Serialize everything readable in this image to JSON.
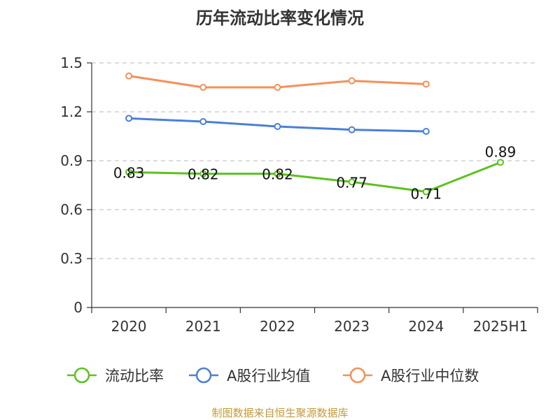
{
  "chart_data": {
    "type": "line",
    "title": "历年流动比率变化情况",
    "categories": [
      "2020",
      "2021",
      "2022",
      "2023",
      "2024",
      "2025H1"
    ],
    "ylim": [
      0,
      1.5
    ],
    "yticks": [
      "0",
      "0.3",
      "0.6",
      "0.9",
      "1.2",
      "1.5"
    ],
    "ytick_values": [
      0,
      0.3,
      0.6,
      0.9,
      1.2,
      1.5
    ],
    "grid": true,
    "legend_position": "bottom",
    "series": [
      {
        "name": "流动比率",
        "color": "#5cc11f",
        "values": [
          0.83,
          0.82,
          0.82,
          0.77,
          0.71,
          0.89
        ],
        "labels": [
          "0.83",
          "0.82",
          "0.82",
          "0.77",
          "0.71",
          "0.89"
        ]
      },
      {
        "name": "A股行业均值",
        "color": "#4a7fd8",
        "values": [
          1.16,
          1.14,
          1.11,
          1.09,
          1.08,
          null
        ]
      },
      {
        "name": "A股行业中位数",
        "color": "#f59058",
        "values": [
          1.42,
          1.35,
          1.35,
          1.39,
          1.37,
          null
        ]
      }
    ],
    "source": "制图数据来自恒生聚源数据库"
  }
}
